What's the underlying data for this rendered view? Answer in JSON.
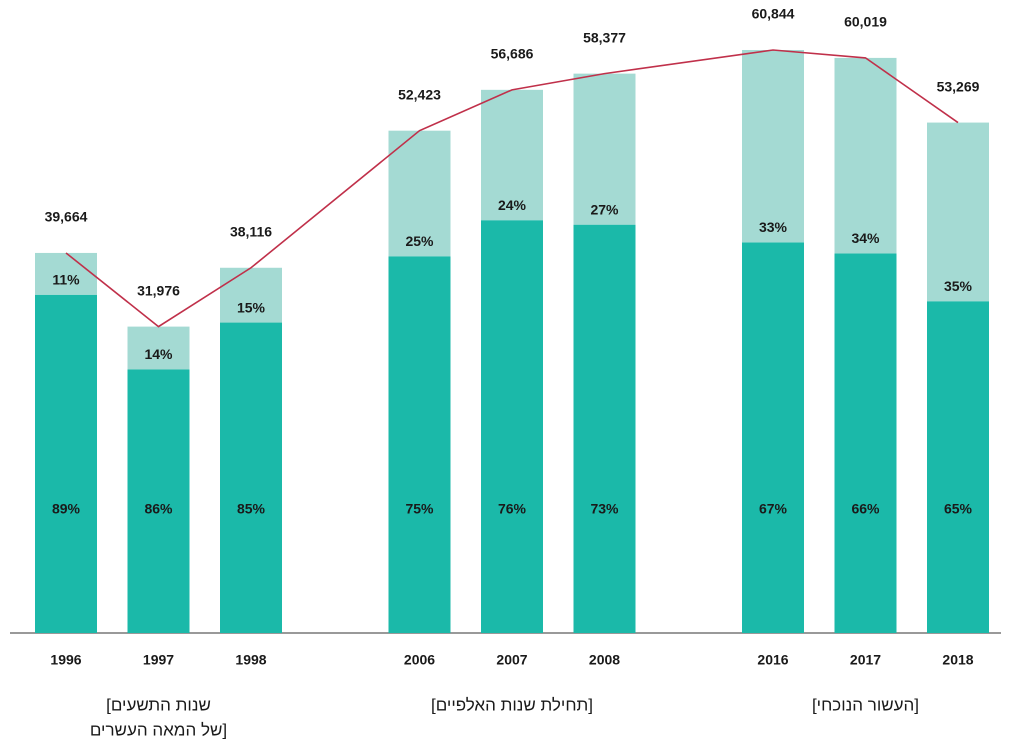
{
  "chart_data": {
    "type": "bar",
    "groups": [
      {
        "label": [
          "שנות התשעים]",
          "[של המאה העשרים"
        ],
        "categories": [
          "1996",
          "1997",
          "1998"
        ]
      },
      {
        "label": [
          "[תחילת שנות האלפיים]"
        ],
        "categories": [
          "2006",
          "2007",
          "2008"
        ]
      },
      {
        "label": [
          "[העשור הנוכחי]"
        ],
        "categories": [
          "2016",
          "2017",
          "2018"
        ]
      }
    ],
    "series": [
      {
        "color": "#c0304a",
        "values": [
          39664,
          31976,
          38116,
          52423,
          56686,
          58377,
          60844,
          60019,
          53269
        ],
        "value_labels": [
          "39,664",
          "31,976",
          "38,116",
          "52,423",
          "56,686",
          "58,377",
          "60,844",
          "60,019",
          "53,269"
        ]
      },
      {
        "color": "#1bb9a9",
        "values": [
          89,
          86,
          85,
          75,
          76,
          73,
          67,
          66,
          65
        ],
        "value_labels": [
          "89%",
          "86%",
          "85%",
          "75%",
          "76%",
          "73%",
          "67%",
          "66%",
          "65%"
        ]
      },
      {
        "color": "#a4dad3",
        "values": [
          11,
          14,
          15,
          25,
          24,
          27,
          33,
          34,
          35
        ],
        "value_labels": [
          "11%",
          "14%",
          "15%",
          "25%",
          "24%",
          "27%",
          "33%",
          "34%",
          "35%"
        ]
      }
    ],
    "ylim": [
      0,
      61000
    ]
  }
}
